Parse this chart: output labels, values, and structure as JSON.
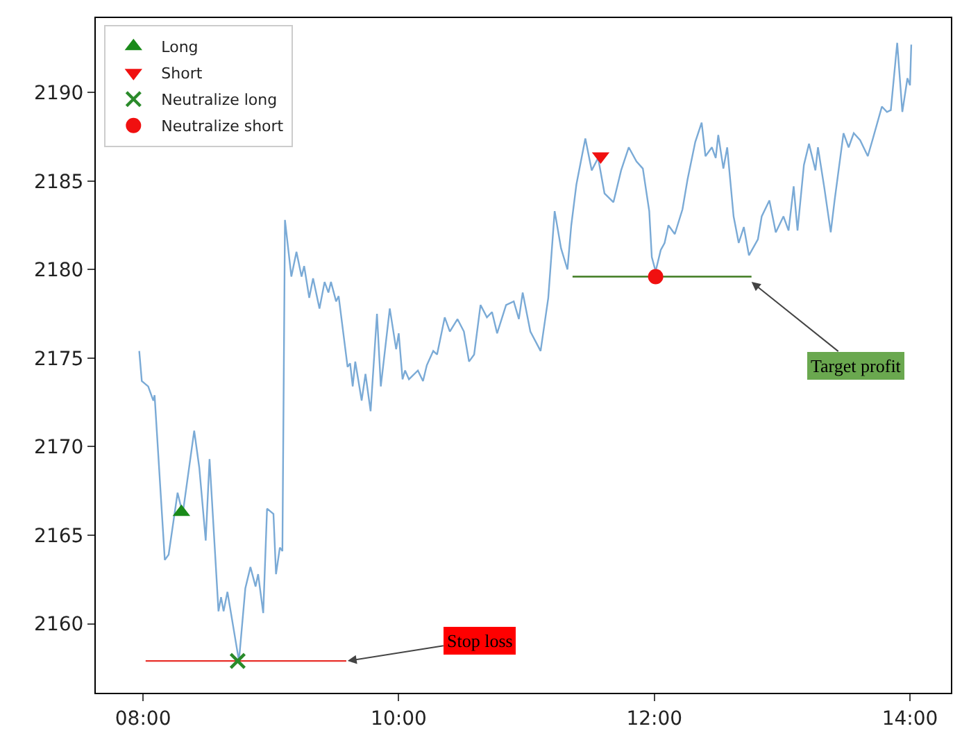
{
  "chart_data": {
    "type": "line",
    "xlim": [
      7.63,
      14.32
    ],
    "ylim": [
      2156.1,
      2194.2
    ],
    "xticks": [
      {
        "value": 8,
        "label": "08:00"
      },
      {
        "value": 10,
        "label": "10:00"
      },
      {
        "value": 12,
        "label": "12:00"
      },
      {
        "value": 14,
        "label": "14:00"
      }
    ],
    "yticks": [
      2160,
      2165,
      2170,
      2175,
      2180,
      2185,
      2190
    ],
    "grid": false,
    "legend": "top left",
    "series": [
      {
        "color": "#7aaad6",
        "marker": "none",
        "x": [
          7.97,
          7.99,
          8.04,
          8.08,
          8.09,
          8.17,
          8.2,
          8.27,
          8.31,
          8.4,
          8.44,
          8.49,
          8.52,
          8.59,
          8.61,
          8.63,
          8.66,
          8.75,
          8.8,
          8.84,
          8.88,
          8.9,
          8.94,
          8.97,
          9.02,
          9.04,
          9.07,
          9.09,
          9.11,
          9.16,
          9.2,
          9.24,
          9.26,
          9.3,
          9.33,
          9.38,
          9.42,
          9.45,
          9.47,
          9.51,
          9.53,
          9.6,
          9.62,
          9.64,
          9.66,
          9.71,
          9.74,
          9.78,
          9.83,
          9.86,
          9.93,
          9.98,
          10.0,
          10.03,
          10.05,
          10.08,
          10.15,
          10.19,
          10.22,
          10.27,
          10.3,
          10.36,
          10.4,
          10.46,
          10.51,
          10.55,
          10.59,
          10.64,
          10.69,
          10.73,
          10.77,
          10.84,
          10.9,
          10.94,
          10.97,
          11.03,
          11.11,
          11.17,
          11.22,
          11.27,
          11.32,
          11.35,
          11.39,
          11.46,
          11.51,
          11.56,
          11.61,
          11.68,
          11.74,
          11.8,
          11.86,
          11.91,
          11.96,
          11.98,
          12.01,
          12.05,
          12.08,
          12.11,
          12.16,
          12.22,
          12.26,
          12.32,
          12.37,
          12.4,
          12.45,
          12.48,
          12.5,
          12.54,
          12.57,
          12.62,
          12.66,
          12.7,
          12.74,
          12.81,
          12.84,
          12.9,
          12.95,
          13.01,
          13.05,
          13.09,
          13.12,
          13.17,
          13.21,
          13.26,
          13.28,
          13.33,
          13.38,
          13.41,
          13.48,
          13.52,
          13.56,
          13.61,
          13.67,
          13.71,
          13.78,
          13.82,
          13.85,
          13.9,
          13.94,
          13.98,
          14.0,
          14.01
        ],
        "values": [
          2175.4,
          2173.7,
          2173.4,
          2172.6,
          2172.9,
          2163.6,
          2163.9,
          2167.4,
          2166.2,
          2170.9,
          2168.8,
          2164.7,
          2169.3,
          2160.7,
          2161.5,
          2160.7,
          2161.8,
          2157.9,
          2162.0,
          2163.2,
          2162.1,
          2162.8,
          2160.6,
          2166.5,
          2166.2,
          2162.8,
          2164.3,
          2164.1,
          2182.8,
          2179.6,
          2181.0,
          2179.6,
          2180.2,
          2178.4,
          2179.5,
          2177.8,
          2179.3,
          2178.7,
          2179.3,
          2178.2,
          2178.5,
          2174.5,
          2174.7,
          2173.4,
          2174.8,
          2172.6,
          2174.1,
          2172.0,
          2177.5,
          2173.4,
          2177.8,
          2175.5,
          2176.4,
          2173.8,
          2174.3,
          2173.8,
          2174.3,
          2173.7,
          2174.6,
          2175.4,
          2175.2,
          2177.3,
          2176.5,
          2177.2,
          2176.5,
          2174.8,
          2175.2,
          2178.0,
          2177.3,
          2177.6,
          2176.4,
          2178.0,
          2178.2,
          2177.2,
          2178.7,
          2176.5,
          2175.4,
          2178.4,
          2183.3,
          2181.2,
          2180.0,
          2182.5,
          2184.8,
          2187.4,
          2185.6,
          2186.3,
          2184.3,
          2183.8,
          2185.6,
          2186.9,
          2186.1,
          2185.7,
          2183.3,
          2180.7,
          2179.9,
          2181.1,
          2181.5,
          2182.5,
          2182.0,
          2183.4,
          2185.1,
          2187.2,
          2188.3,
          2186.4,
          2186.9,
          2186.3,
          2187.6,
          2185.7,
          2186.9,
          2183.0,
          2181.5,
          2182.4,
          2180.8,
          2181.7,
          2183.0,
          2183.9,
          2182.1,
          2183.0,
          2182.2,
          2184.7,
          2182.2,
          2185.9,
          2187.1,
          2185.6,
          2186.9,
          2184.6,
          2182.1,
          2183.9,
          2187.7,
          2186.9,
          2187.7,
          2187.3,
          2186.4,
          2187.4,
          2189.2,
          2188.9,
          2189.0,
          2192.8,
          2188.9,
          2190.8,
          2190.4,
          2192.7
        ]
      },
      {
        "color": "#e8302a",
        "marker": "none",
        "x": [
          8.02,
          9.59
        ],
        "values": [
          2157.9,
          2157.9
        ]
      },
      {
        "color": "#3d7a1f",
        "marker": "none",
        "x": [
          11.36,
          12.76
        ],
        "values": [
          2179.6,
          2179.6
        ]
      },
      {
        "type": "scatter",
        "name": "Long",
        "color": "#1a8a1a",
        "marker": "triangle",
        "x": [
          8.3
        ],
        "values": [
          2166.3
        ]
      },
      {
        "type": "scatter",
        "name": "Short",
        "color": "#f01010",
        "marker": "triangle-down",
        "x": [
          11.58
        ],
        "values": [
          2186.4
        ]
      },
      {
        "type": "scatter",
        "name": "Neutralize long",
        "color": "#2a8a2a",
        "marker": "cross",
        "x": [
          8.74
        ],
        "values": [
          2157.9
        ]
      },
      {
        "type": "scatter",
        "name": "Neutralize short",
        "color": "#f01010",
        "marker": "circle",
        "x": [
          12.01
        ],
        "values": [
          2179.6
        ]
      }
    ],
    "annotations": [
      {
        "text": "Stop loss",
        "x": 9.6,
        "y": 2157.9
      },
      {
        "text": "Target profit",
        "x": 12.76,
        "y": 2179.3
      }
    ]
  }
}
